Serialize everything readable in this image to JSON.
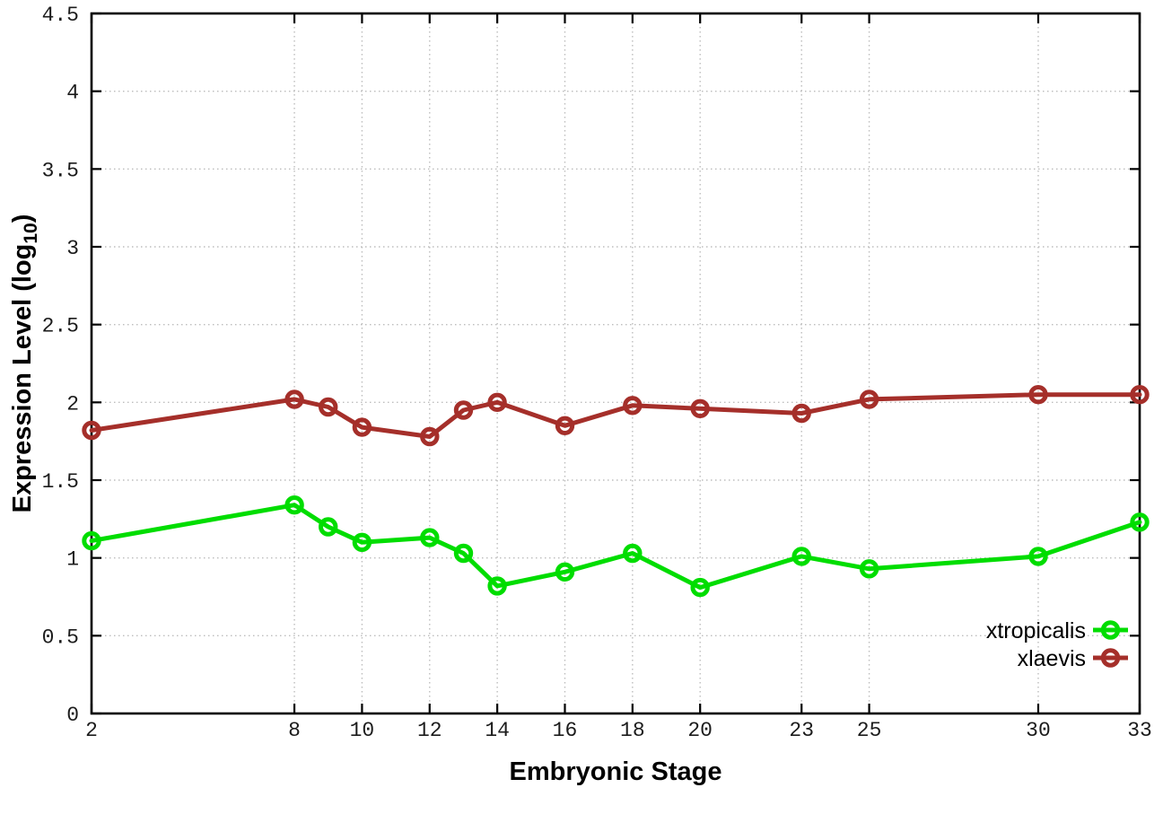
{
  "chart_data": {
    "type": "line",
    "title": "",
    "xlabel": "Embryonic Stage",
    "ylabel": "Expression Level (log10)",
    "ylabel_parts": {
      "main": "Expression Level (log",
      "sub": "10",
      "end": ")"
    },
    "x": [
      2,
      8,
      9,
      10,
      12,
      13,
      14,
      16,
      18,
      20,
      23,
      25,
      30,
      33
    ],
    "series": [
      {
        "name": "xtropicalis",
        "color": "#00dd00",
        "values": [
          1.11,
          1.34,
          1.2,
          1.1,
          1.13,
          1.03,
          0.82,
          0.91,
          1.03,
          0.81,
          1.01,
          0.93,
          1.01,
          1.23
        ]
      },
      {
        "name": "xlaevis",
        "color": "#a52f2a",
        "values": [
          1.82,
          2.02,
          1.97,
          1.84,
          1.78,
          1.95,
          2.0,
          1.85,
          1.98,
          1.96,
          1.93,
          2.02,
          2.05,
          2.05
        ]
      }
    ],
    "xticks": [
      2,
      8,
      10,
      12,
      14,
      16,
      18,
      20,
      23,
      25,
      30,
      33
    ],
    "yticks": [
      0,
      0.5,
      1,
      1.5,
      2,
      2.5,
      3,
      3.5,
      4,
      4.5
    ],
    "xlim": [
      2,
      33
    ],
    "ylim": [
      0,
      4.5
    ],
    "grid": true,
    "marker": "open-circle",
    "legend_position": "inside-bottom-right",
    "colors": {
      "background": "#ffffff",
      "axis": "#000000",
      "grid": "#bdbdbd",
      "tick_text": "#1c1c1c"
    }
  }
}
